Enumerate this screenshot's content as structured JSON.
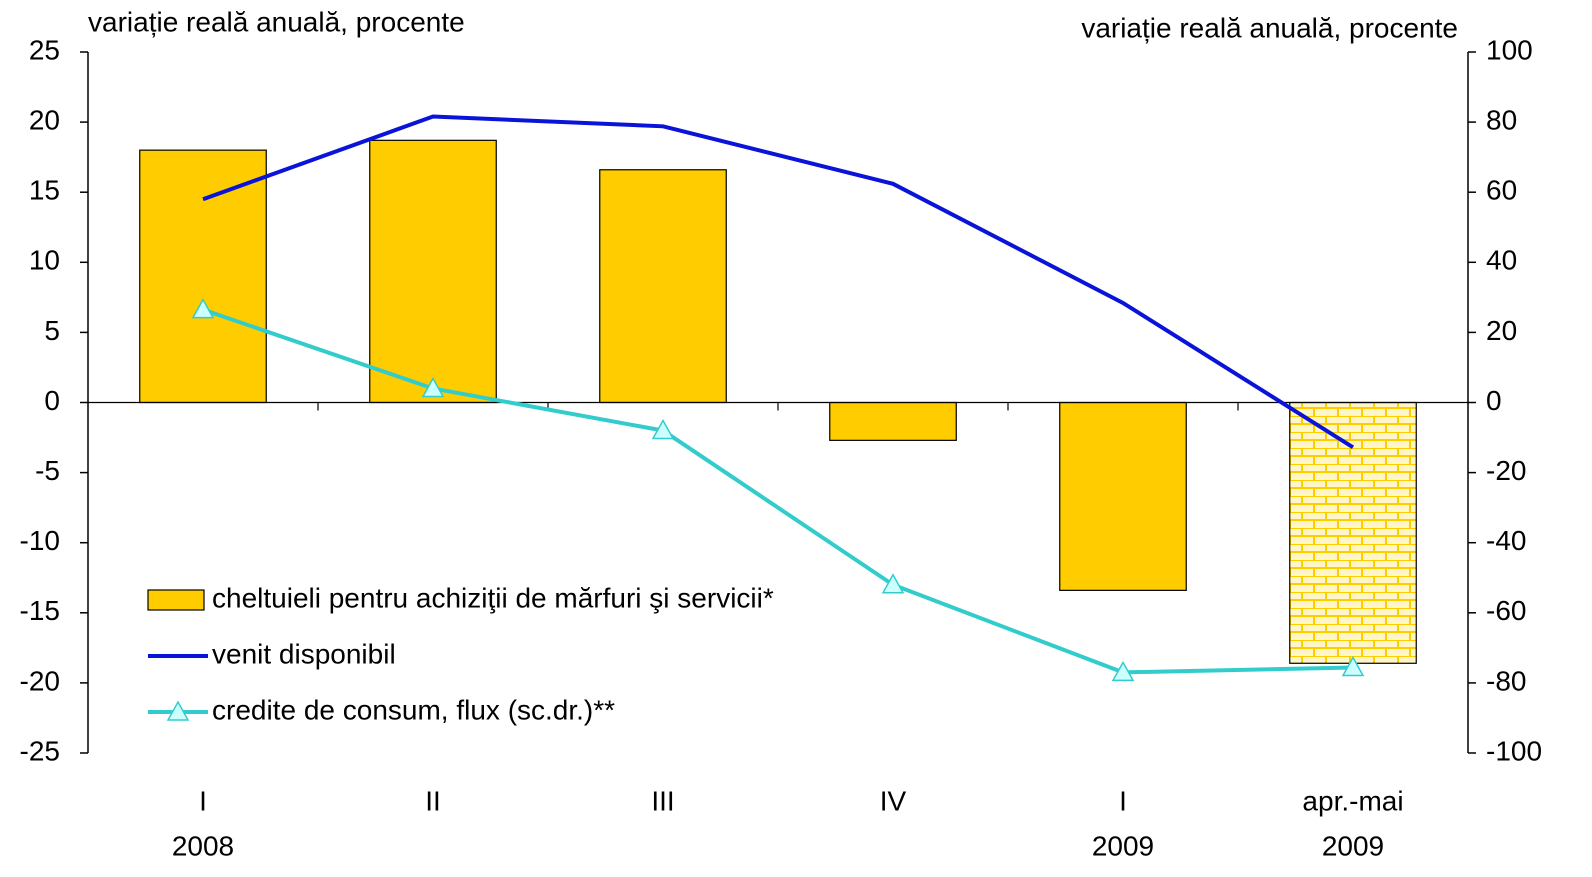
{
  "chart_data": {
    "type": "bar-line",
    "y_label": "variație reală anuală, procente",
    "y2_label": "variație reală anuală, procente",
    "categories": [
      "I",
      "II",
      "III",
      "IV",
      "I",
      "apr.-mai"
    ],
    "years": [
      "2008",
      null,
      null,
      null,
      "2009",
      "2009"
    ],
    "ylim": [
      -25,
      25
    ],
    "yticks": [
      -25,
      -20,
      -15,
      -10,
      -5,
      0,
      5,
      10,
      15,
      20,
      25
    ],
    "y2lim": [
      -100,
      100
    ],
    "y2ticks": [
      -100,
      -80,
      -60,
      -40,
      -20,
      0,
      20,
      40,
      60,
      80,
      100
    ],
    "series": [
      {
        "name": "cheltuieli pentru achiziţii de mărfuri şi servicii*",
        "type": "bar",
        "color": "#ffcc00",
        "values": [
          18.0,
          18.7,
          16.6,
          -2.7,
          -13.4,
          -18.6
        ]
      },
      {
        "name": "venit disponibil",
        "type": "line",
        "color": "#0a14d8",
        "values": [
          14.5,
          20.4,
          19.7,
          15.6,
          7.1,
          -3.2
        ]
      },
      {
        "name": "credite de consum, flux (sc.dr.)**",
        "type": "line",
        "axis": "y2",
        "marker": "triangle",
        "color": "#33cccc",
        "values": [
          26.5,
          4.0,
          -8.0,
          -52.0,
          -77.0,
          -75.6
        ]
      }
    ],
    "legend": "lower left"
  }
}
